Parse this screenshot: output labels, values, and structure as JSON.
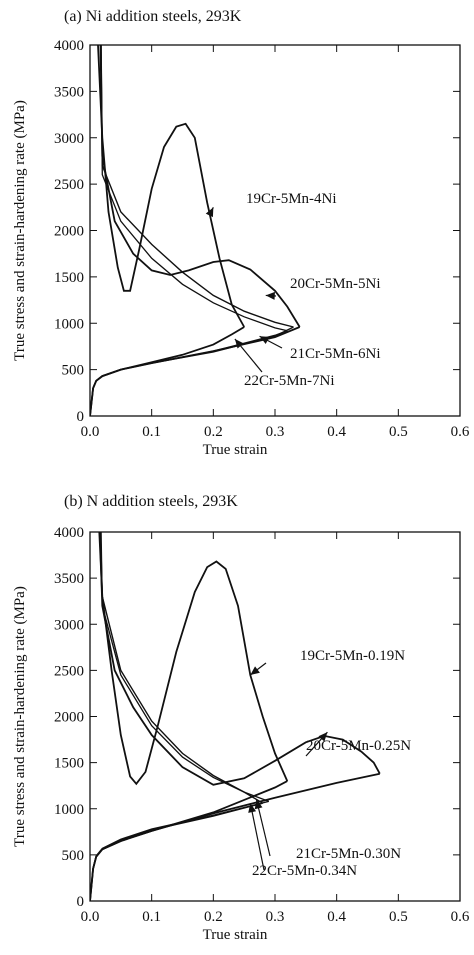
{
  "chart_data": [
    {
      "type": "line",
      "title": "(a) Ni addition steels, 293K",
      "xlabel": "True strain",
      "ylabel": "True stress and strain-hardening rate (MPa)",
      "xlim": [
        0,
        0.6
      ],
      "ylim": [
        0,
        4000
      ],
      "xticks": [
        "0.0",
        "0.1",
        "0.2",
        "0.3",
        "0.4",
        "0.5",
        "0.6"
      ],
      "yticks": [
        "0",
        "500",
        "1000",
        "1500",
        "2000",
        "2500",
        "3000",
        "3500",
        "4000"
      ],
      "grid": false,
      "annotations": [
        {
          "text": "19Cr-5Mn-4Ni",
          "arrow_to": [
            0.2,
            2250
          ]
        },
        {
          "text": "20Cr-5Mn-5Ni",
          "arrow_to": [
            0.285,
            1300
          ]
        },
        {
          "text": "21Cr-5Mn-6Ni",
          "arrow_to": [
            0.275,
            860
          ]
        },
        {
          "text": "22Cr-5Mn-7Ni",
          "arrow_to": [
            0.235,
            830
          ]
        }
      ],
      "series": [
        {
          "label": "19Cr-5Mn-4Ni",
          "stress": [
            [
              0.0,
              0
            ],
            [
              0.005,
              300
            ],
            [
              0.01,
              380
            ],
            [
              0.02,
              430
            ],
            [
              0.05,
              500
            ],
            [
              0.1,
              580
            ],
            [
              0.15,
              660
            ],
            [
              0.2,
              770
            ],
            [
              0.23,
              880
            ],
            [
              0.25,
              960
            ]
          ],
          "hardening": [
            [
              0.013,
              4000
            ],
            [
              0.02,
              3000
            ],
            [
              0.03,
              2200
            ],
            [
              0.045,
              1600
            ],
            [
              0.055,
              1350
            ],
            [
              0.065,
              1350
            ],
            [
              0.08,
              1800
            ],
            [
              0.1,
              2450
            ],
            [
              0.12,
              2900
            ],
            [
              0.14,
              3120
            ],
            [
              0.155,
              3150
            ],
            [
              0.17,
              3000
            ],
            [
              0.19,
              2300
            ],
            [
              0.21,
              1700
            ],
            [
              0.23,
              1200
            ],
            [
              0.25,
              960
            ]
          ]
        },
        {
          "label": "20Cr-5Mn-5Ni",
          "stress": [
            [
              0.0,
              0
            ],
            [
              0.005,
              300
            ],
            [
              0.01,
              380
            ],
            [
              0.02,
              430
            ],
            [
              0.05,
              500
            ],
            [
              0.1,
              570
            ],
            [
              0.2,
              700
            ],
            [
              0.3,
              850
            ],
            [
              0.34,
              960
            ]
          ],
          "hardening": [
            [
              0.017,
              4000
            ],
            [
              0.02,
              2800
            ],
            [
              0.04,
              2100
            ],
            [
              0.07,
              1750
            ],
            [
              0.1,
              1570
            ],
            [
              0.13,
              1520
            ],
            [
              0.16,
              1570
            ],
            [
              0.2,
              1660
            ],
            [
              0.225,
              1680
            ],
            [
              0.26,
              1580
            ],
            [
              0.3,
              1350
            ],
            [
              0.32,
              1180
            ],
            [
              0.34,
              960
            ]
          ]
        },
        {
          "label": "21Cr-5Mn-6Ni",
          "stress": [
            [
              0.0,
              0
            ],
            [
              0.005,
              300
            ],
            [
              0.01,
              380
            ],
            [
              0.02,
              430
            ],
            [
              0.05,
              500
            ],
            [
              0.1,
              570
            ],
            [
              0.2,
              690
            ],
            [
              0.3,
              860
            ],
            [
              0.33,
              960
            ]
          ],
          "hardening": [
            [
              0.018,
              4000
            ],
            [
              0.02,
              2700
            ],
            [
              0.05,
              2200
            ],
            [
              0.1,
              1850
            ],
            [
              0.15,
              1550
            ],
            [
              0.2,
              1300
            ],
            [
              0.25,
              1130
            ],
            [
              0.3,
              1010
            ],
            [
              0.33,
              960
            ]
          ]
        },
        {
          "label": "22Cr-5Mn-7Ni",
          "stress": [
            [
              0.0,
              0
            ],
            [
              0.005,
              300
            ],
            [
              0.01,
              380
            ],
            [
              0.02,
              430
            ],
            [
              0.05,
              500
            ],
            [
              0.1,
              570
            ],
            [
              0.2,
              700
            ],
            [
              0.3,
              870
            ],
            [
              0.32,
              920
            ]
          ],
          "hardening": [
            [
              0.018,
              4000
            ],
            [
              0.02,
              2600
            ],
            [
              0.05,
              2100
            ],
            [
              0.1,
              1700
            ],
            [
              0.15,
              1420
            ],
            [
              0.2,
              1220
            ],
            [
              0.25,
              1070
            ],
            [
              0.3,
              950
            ],
            [
              0.32,
              920
            ]
          ]
        }
      ]
    },
    {
      "type": "line",
      "title": "(b) N addition steels, 293K",
      "xlabel": "True strain",
      "ylabel": "True stress and strain-hardening rate (MPa)",
      "xlim": [
        0,
        0.6
      ],
      "ylim": [
        0,
        4000
      ],
      "xticks": [
        "0.0",
        "0.1",
        "0.2",
        "0.3",
        "0.4",
        "0.5",
        "0.6"
      ],
      "yticks": [
        "0",
        "500",
        "1000",
        "1500",
        "2000",
        "2500",
        "3000",
        "3500",
        "4000"
      ],
      "grid": false,
      "annotations": [
        {
          "text": "19Cr-5Mn-0.19N",
          "arrow_to": [
            0.26,
            2450
          ]
        },
        {
          "text": "20Cr-5Mn-0.25N",
          "arrow_to": [
            0.385,
            1830
          ]
        },
        {
          "text": "21Cr-5Mn-0.30N",
          "arrow_to": [
            0.27,
            1100
          ]
        },
        {
          "text": "22Cr-5Mn-0.34N",
          "arrow_to": [
            0.26,
            1060
          ]
        }
      ],
      "series": [
        {
          "label": "19Cr-5Mn-0.19N",
          "stress": [
            [
              0.0,
              0
            ],
            [
              0.005,
              350
            ],
            [
              0.01,
              480
            ],
            [
              0.02,
              560
            ],
            [
              0.05,
              650
            ],
            [
              0.1,
              760
            ],
            [
              0.2,
              960
            ],
            [
              0.3,
              1230
            ],
            [
              0.32,
              1300
            ]
          ],
          "hardening": [
            [
              0.015,
              4000
            ],
            [
              0.02,
              3300
            ],
            [
              0.035,
              2500
            ],
            [
              0.05,
              1800
            ],
            [
              0.065,
              1350
            ],
            [
              0.075,
              1270
            ],
            [
              0.09,
              1400
            ],
            [
              0.11,
              1900
            ],
            [
              0.14,
              2700
            ],
            [
              0.17,
              3350
            ],
            [
              0.19,
              3620
            ],
            [
              0.205,
              3680
            ],
            [
              0.22,
              3600
            ],
            [
              0.24,
              3200
            ],
            [
              0.26,
              2450
            ],
            [
              0.28,
              2000
            ],
            [
              0.3,
              1600
            ],
            [
              0.32,
              1300
            ]
          ]
        },
        {
          "label": "20Cr-5Mn-0.25N",
          "stress": [
            [
              0.0,
              0
            ],
            [
              0.005,
              350
            ],
            [
              0.01,
              480
            ],
            [
              0.02,
              560
            ],
            [
              0.05,
              650
            ],
            [
              0.1,
              760
            ],
            [
              0.2,
              950
            ],
            [
              0.3,
              1120
            ],
            [
              0.4,
              1280
            ],
            [
              0.47,
              1380
            ]
          ],
          "hardening": [
            [
              0.016,
              4000
            ],
            [
              0.02,
              3200
            ],
            [
              0.04,
              2500
            ],
            [
              0.07,
              2100
            ],
            [
              0.1,
              1800
            ],
            [
              0.15,
              1450
            ],
            [
              0.2,
              1260
            ],
            [
              0.25,
              1330
            ],
            [
              0.3,
              1520
            ],
            [
              0.35,
              1720
            ],
            [
              0.38,
              1790
            ],
            [
              0.41,
              1750
            ],
            [
              0.44,
              1620
            ],
            [
              0.46,
              1500
            ],
            [
              0.47,
              1380
            ]
          ]
        },
        {
          "label": "21Cr-5Mn-0.30N",
          "stress": [
            [
              0.0,
              0
            ],
            [
              0.005,
              350
            ],
            [
              0.01,
              480
            ],
            [
              0.02,
              560
            ],
            [
              0.05,
              660
            ],
            [
              0.1,
              770
            ],
            [
              0.2,
              920
            ],
            [
              0.28,
              1060
            ]
          ],
          "hardening": [
            [
              0.017,
              4000
            ],
            [
              0.02,
              3300
            ],
            [
              0.05,
              2500
            ],
            [
              0.1,
              1950
            ],
            [
              0.15,
              1600
            ],
            [
              0.2,
              1360
            ],
            [
              0.25,
              1180
            ],
            [
              0.28,
              1060
            ]
          ]
        },
        {
          "label": "22Cr-5Mn-0.34N",
          "stress": [
            [
              0.0,
              0
            ],
            [
              0.005,
              350
            ],
            [
              0.01,
              490
            ],
            [
              0.02,
              570
            ],
            [
              0.05,
              670
            ],
            [
              0.1,
              780
            ],
            [
              0.2,
              930
            ],
            [
              0.29,
              1080
            ]
          ],
          "hardening": [
            [
              0.018,
              4000
            ],
            [
              0.02,
              3200
            ],
            [
              0.05,
              2450
            ],
            [
              0.1,
              1900
            ],
            [
              0.15,
              1560
            ],
            [
              0.2,
              1340
            ],
            [
              0.25,
              1180
            ],
            [
              0.29,
              1080
            ]
          ]
        }
      ]
    }
  ]
}
